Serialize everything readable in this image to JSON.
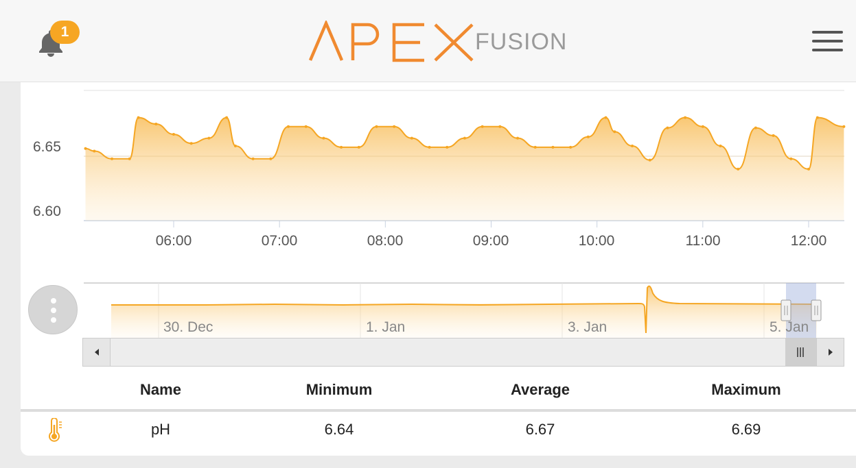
{
  "header": {
    "notification_count": "1",
    "logo_primary": "APEX",
    "logo_secondary": "FUSION",
    "accent_color": "#f08a30"
  },
  "chart_data": [
    {
      "type": "area",
      "y_ticks": [
        "6.65",
        "6.60"
      ],
      "x_ticks": [
        "06:00",
        "07:00",
        "08:00",
        "09:00",
        "10:00",
        "11:00",
        "12:00"
      ],
      "ylim": [
        6.59,
        6.7
      ],
      "grid": true,
      "series": [
        {
          "x": [
            "05:10",
            "05:15",
            "05:25",
            "05:35",
            "05:40",
            "05:50",
            "06:00",
            "06:10",
            "06:20",
            "06:30",
            "06:35",
            "06:45",
            "06:55",
            "07:05",
            "07:15",
            "07:25",
            "07:35",
            "07:45",
            "07:55",
            "08:05",
            "08:15",
            "08:25",
            "08:35",
            "08:45",
            "08:55",
            "09:05",
            "09:15",
            "09:25",
            "09:35",
            "09:45",
            "09:55",
            "10:05",
            "10:10",
            "10:20",
            "10:30",
            "10:40",
            "10:50",
            "11:00",
            "11:10",
            "11:20",
            "11:30",
            "11:40",
            "11:50",
            "12:00",
            "12:05",
            "12:20"
          ],
          "values": [
            6.656,
            6.654,
            6.648,
            6.648,
            6.68,
            6.675,
            6.667,
            6.66,
            6.664,
            6.68,
            6.658,
            6.648,
            6.648,
            6.673,
            6.673,
            6.664,
            6.657,
            6.657,
            6.673,
            6.673,
            6.664,
            6.657,
            6.657,
            6.664,
            6.673,
            6.673,
            6.664,
            6.657,
            6.657,
            6.657,
            6.665,
            6.68,
            6.669,
            6.658,
            6.647,
            6.672,
            6.68,
            6.673,
            6.658,
            6.64,
            6.672,
            6.666,
            6.648,
            6.64,
            6.68,
            6.673
          ]
        }
      ],
      "color": "#f5a623"
    },
    {
      "type": "area",
      "x_ticks": [
        "30. Dec",
        "1. Jan",
        "3. Jan",
        "5. Jan"
      ],
      "color": "#f5a623"
    }
  ],
  "table": {
    "headers": [
      "Name",
      "Minimum",
      "Average",
      "Maximum"
    ],
    "rows": [
      {
        "name": "pH",
        "minimum": "6.64",
        "average": "6.67",
        "maximum": "6.69"
      }
    ]
  }
}
